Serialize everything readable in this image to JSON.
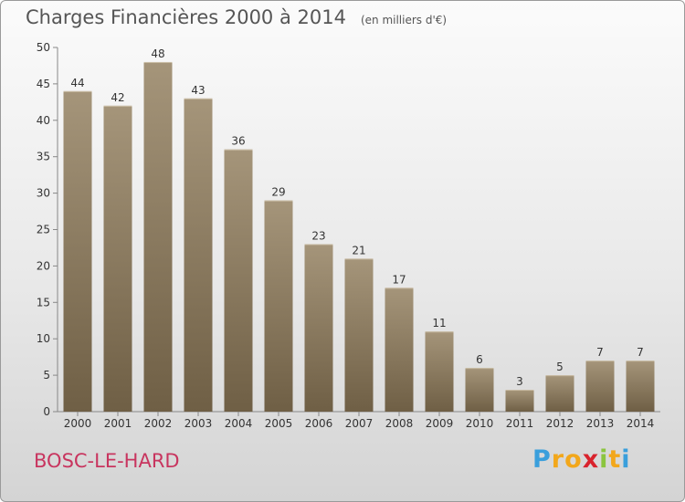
{
  "header": {
    "title": "Charges Financières 2000 à 2014",
    "subtitle": "(en milliers d'€)"
  },
  "footer": {
    "commune": "BOSC-LE-HARD",
    "logo_letters": [
      "P",
      "r",
      "o",
      "x",
      "i",
      "t",
      "i"
    ],
    "logo_colors": [
      "#3a9fdc",
      "#f2a71b",
      "#f2a71b",
      "#d9232d",
      "#8bc53f",
      "#f2a71b",
      "#3a9fdc"
    ]
  },
  "chart_data": {
    "type": "bar",
    "categories": [
      "2000",
      "2001",
      "2002",
      "2003",
      "2004",
      "2005",
      "2006",
      "2007",
      "2008",
      "2009",
      "2010",
      "2011",
      "2012",
      "2013",
      "2014"
    ],
    "values": [
      44,
      42,
      48,
      43,
      36,
      29,
      23,
      21,
      17,
      11,
      6,
      3,
      5,
      7,
      7
    ],
    "ylim": [
      0,
      50
    ],
    "yticks": [
      0,
      5,
      10,
      15,
      20,
      25,
      30,
      35,
      40,
      45,
      50
    ],
    "grid": false,
    "bar_color_top": "#a5957a",
    "bar_color_bottom": "#6f5f45"
  }
}
